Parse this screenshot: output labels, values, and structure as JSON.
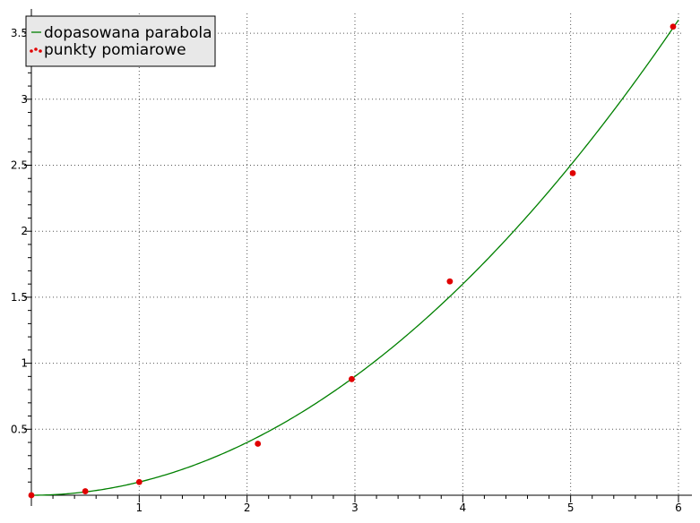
{
  "chart_data": {
    "type": "line",
    "title": "",
    "xlabel": "",
    "ylabel": "",
    "xlim": [
      0,
      6.05
    ],
    "ylim": [
      0,
      3.65
    ],
    "x_ticks": [
      1,
      2,
      3,
      4,
      5,
      6
    ],
    "x_tick_labels": [
      "1",
      "2",
      "3",
      "4",
      "5",
      "6"
    ],
    "y_ticks": [
      0.5,
      1,
      1.5,
      2,
      2.5,
      3,
      3.5
    ],
    "y_tick_labels": [
      "0.5",
      "1",
      "1.5",
      "2",
      "2.5",
      "3",
      "3.5"
    ],
    "grid": true,
    "legend_position": "top-left",
    "series": [
      {
        "name": "dopasowana parabola",
        "kind": "line",
        "color": "#008000",
        "model": "y = a*x^2",
        "coefficient_a": 0.1
      },
      {
        "name": "punkty pomiarowe",
        "kind": "scatter",
        "color": "#e00000",
        "points": [
          [
            0,
            0
          ],
          [
            0.5,
            0.03
          ],
          [
            1,
            0.1
          ],
          [
            2.1,
            0.39
          ],
          [
            2.97,
            0.88
          ],
          [
            3.88,
            1.62
          ],
          [
            5.02,
            2.44
          ],
          [
            5.95,
            3.55
          ]
        ]
      }
    ]
  }
}
